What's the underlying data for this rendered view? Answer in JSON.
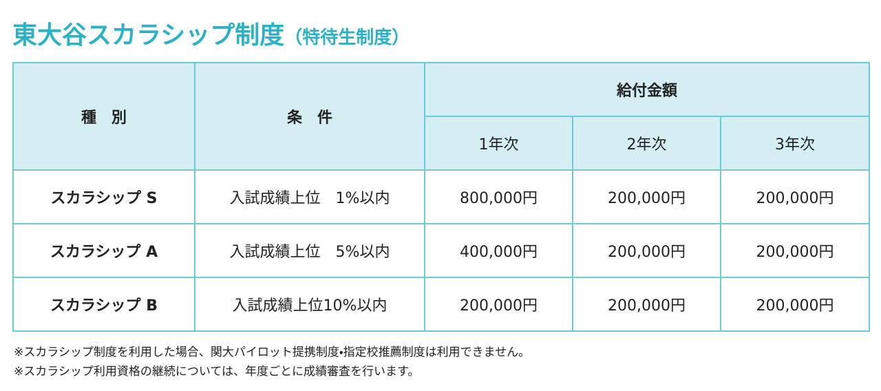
{
  "header": {
    "title": "東大谷スカラシップ制度",
    "subtitle": "（特待生制度）"
  },
  "table": {
    "headers": {
      "type": "種　別",
      "condition": "条　件",
      "amount": "給付金額",
      "years": [
        "1年次",
        "2年次",
        "3年次"
      ]
    },
    "rows": [
      [
        "スカラシップ S",
        "入試成績上位　1%以内",
        "800,000円",
        "200,000円",
        "200,000円"
      ],
      [
        "スカラシップ A",
        "入試成績上位　5%以内",
        "400,000円",
        "200,000円",
        "200,000円"
      ],
      [
        "スカラシップ B",
        "入試成績上位10%以内",
        "200,000円",
        "200,000円",
        "200,000円"
      ]
    ]
  },
  "notes": [
    "※スカラシップ制度を利用した場合、関大パイロット提携制度・指定校推薦制度は利用できません。",
    "※スカラシップ利用資格の継続については、年度ごとに成績審査を行います。"
  ]
}
